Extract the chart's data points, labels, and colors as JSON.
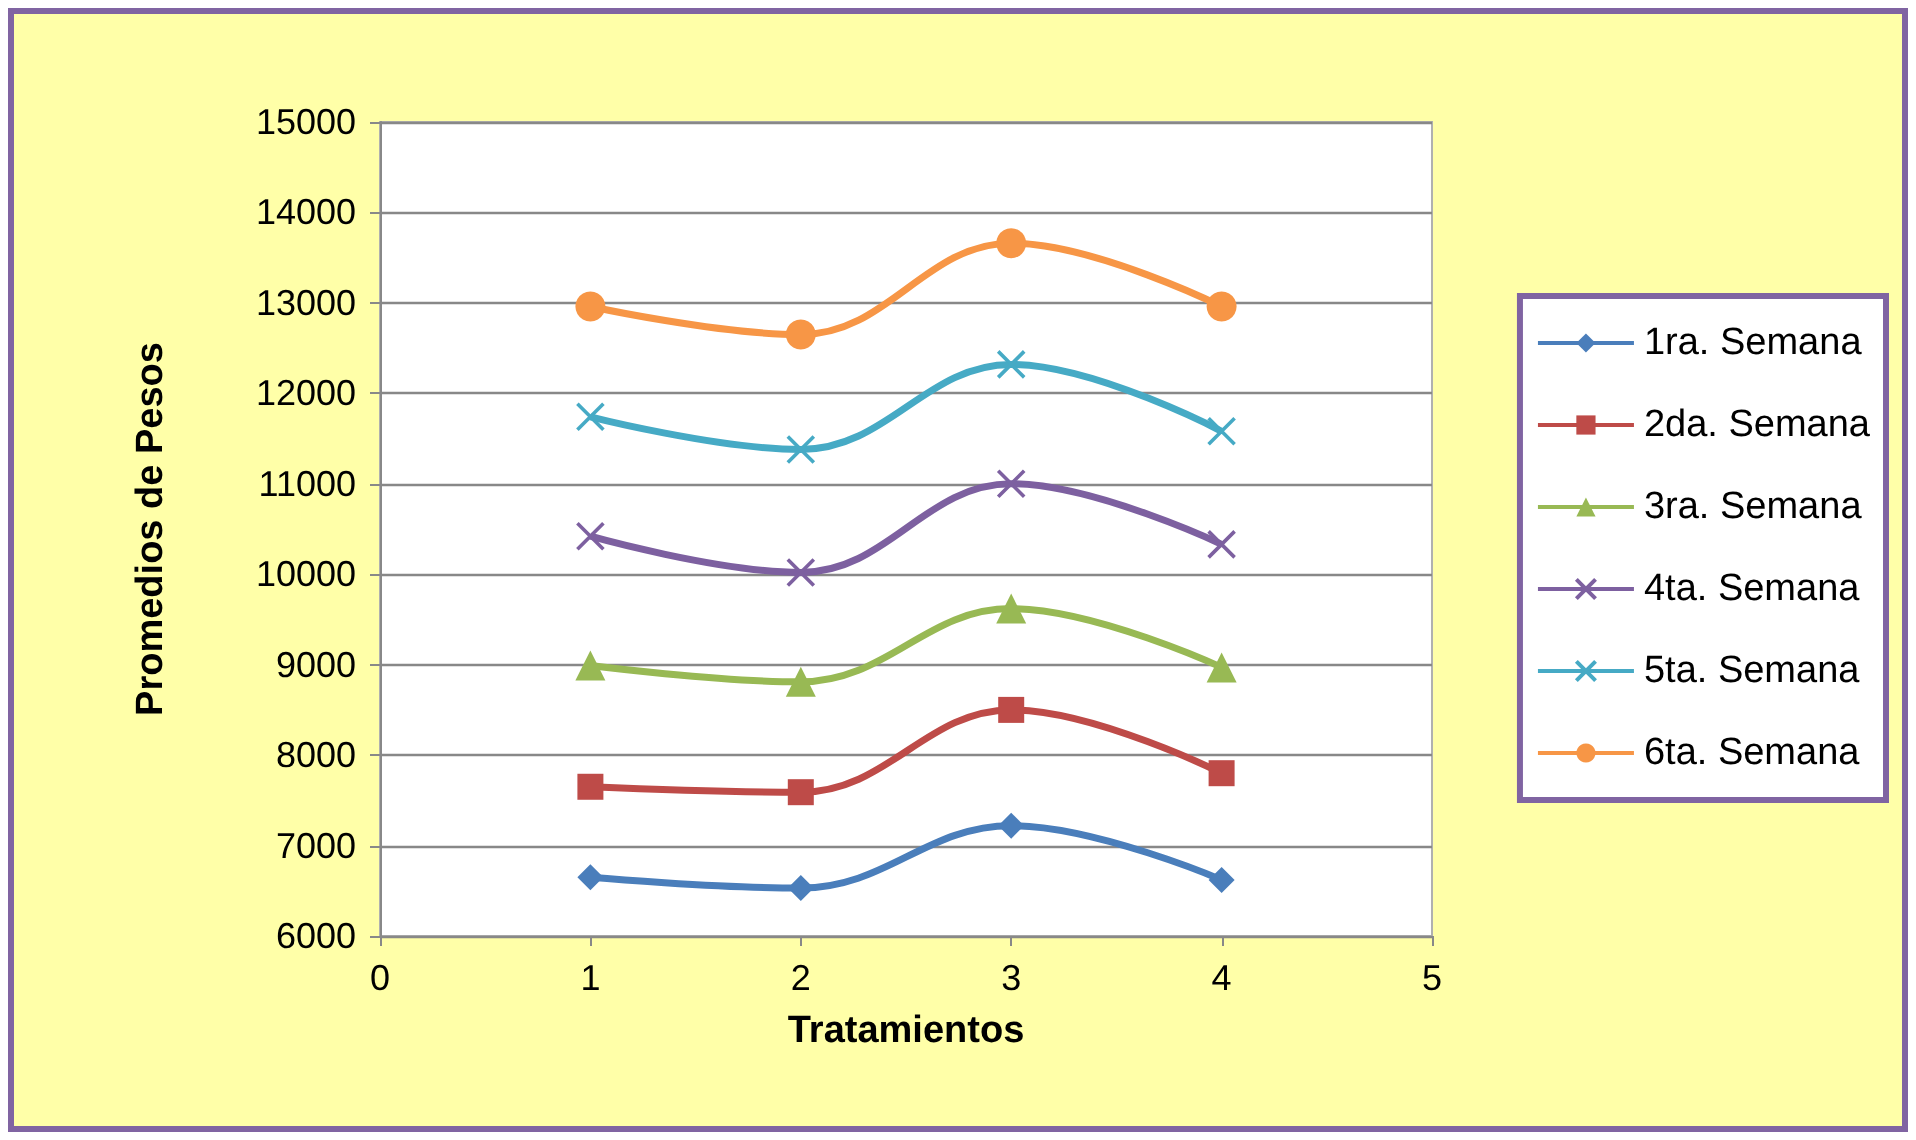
{
  "chart_data": {
    "type": "line",
    "xlabel": "Tratamientos",
    "ylabel": "Promedios de Pesos",
    "x": [
      1,
      2,
      3,
      4
    ],
    "xlim": [
      0,
      5
    ],
    "xticks": [
      0,
      1,
      2,
      3,
      4,
      5
    ],
    "ylim": [
      6000,
      15000
    ],
    "yticks": [
      6000,
      7000,
      8000,
      9000,
      10000,
      11000,
      12000,
      13000,
      14000,
      15000
    ],
    "grid": "y",
    "legend": "right",
    "series": [
      {
        "name": "1ra. Semana",
        "color": "#4a7ebb",
        "marker": "diamond",
        "values": [
          6650,
          6530,
          7220,
          6620
        ]
      },
      {
        "name": "2da. Semana",
        "color": "#be4b48",
        "marker": "square",
        "values": [
          7650,
          7590,
          8500,
          7800
        ]
      },
      {
        "name": "3ra. Semana",
        "color": "#98b954",
        "marker": "triangle",
        "values": [
          8990,
          8810,
          9620,
          8970
        ]
      },
      {
        "name": "4ta. Semana",
        "color": "#7d60a0",
        "marker": "cross",
        "values": [
          10420,
          10020,
          11000,
          10330
        ]
      },
      {
        "name": "5ta. Semana",
        "color": "#46aac5",
        "marker": "cross",
        "values": [
          11740,
          11380,
          12320,
          11580
        ]
      },
      {
        "name": "6ta. Semana",
        "color": "#f79646",
        "marker": "circle",
        "values": [
          12960,
          12650,
          13660,
          12960
        ]
      }
    ]
  }
}
